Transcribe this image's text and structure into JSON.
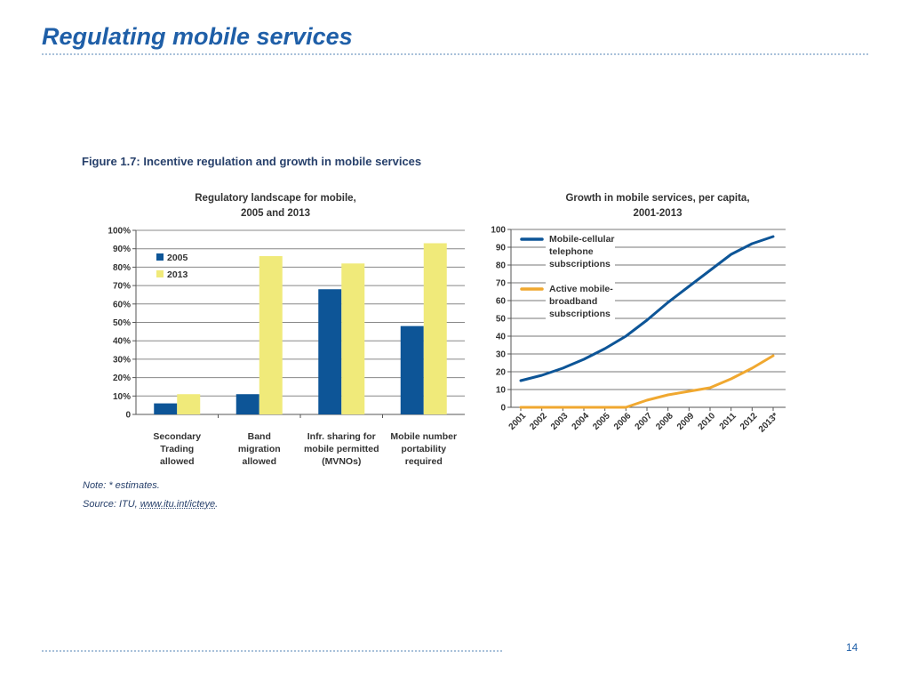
{
  "slide": {
    "title": "Regulating mobile services",
    "page_number": "14"
  },
  "figure": {
    "caption": "Figure 1.7: Incentive regulation and growth in mobile services",
    "note": "Note: * estimates.",
    "source_prefix": "Source: ITU, ",
    "source_link": "www.itu.int/icteye",
    "source_suffix": "."
  },
  "colors": {
    "title_blue": "#1f5fa8",
    "series_2005": "#0d5597",
    "series_2013": "#f0ea7a",
    "line_cellular": "#0d5597",
    "line_broadband": "#f0a830"
  },
  "chart_data": [
    {
      "type": "bar",
      "title_line1": "Regulatory landscape for mobile,",
      "title_line2": "2005 and 2013",
      "categories": [
        [
          "Secondary",
          "Trading",
          "allowed"
        ],
        [
          "Band",
          "migration",
          "allowed"
        ],
        [
          "Infr. sharing for",
          "mobile permitted",
          "(MVNOs)"
        ],
        [
          "Mobile number",
          "portability",
          "required"
        ]
      ],
      "series": [
        {
          "name": "2005",
          "values": [
            6,
            11,
            68,
            48
          ]
        },
        {
          "name": "2013",
          "values": [
            11,
            86,
            82,
            93
          ]
        }
      ],
      "yticks": [
        "0",
        "10%",
        "20%",
        "30%",
        "40%",
        "50%",
        "60%",
        "70%",
        "80%",
        "90%",
        "100%"
      ],
      "ylim": [
        0,
        100
      ],
      "grid": true,
      "legend_position": "top-left"
    },
    {
      "type": "line",
      "title_line1": "Growth in mobile services,  per capita,",
      "title_line2": "2001-2013",
      "x": [
        "2001",
        "2002",
        "2003",
        "2004",
        "2005",
        "2006",
        "2007",
        "2008",
        "2009",
        "2010",
        "2011",
        "2012",
        "2013*"
      ],
      "series": [
        {
          "name": [
            "Mobile-cellular",
            "telephone",
            "subscriptions"
          ],
          "values": [
            15,
            18,
            22,
            27,
            33,
            40,
            49,
            59,
            68,
            77,
            86,
            92,
            96
          ]
        },
        {
          "name": [
            "Active mobile-",
            "broadband",
            "subscriptions"
          ],
          "values": [
            0,
            0,
            0,
            0,
            0,
            0,
            4,
            7,
            9,
            11,
            16,
            22,
            29
          ]
        }
      ],
      "yticks": [
        "0",
        "10",
        "20",
        "30",
        "40",
        "50",
        "60",
        "70",
        "80",
        "90",
        "100"
      ],
      "ylim": [
        0,
        100
      ],
      "grid": true,
      "legend_position": "top-left"
    }
  ]
}
